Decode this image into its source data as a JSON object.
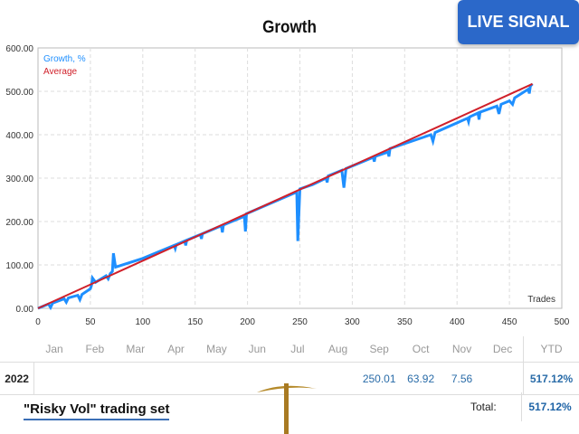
{
  "badge": "LIVE SIGNAL",
  "chart_data": {
    "type": "line",
    "title": "Growth",
    "xlabel": "Trades",
    "ylabel": "",
    "xlim": [
      0,
      500
    ],
    "ylim": [
      0,
      600
    ],
    "grid": true,
    "legend_placement": "top-left",
    "xticks": [
      "0",
      "50",
      "100",
      "150",
      "200",
      "250",
      "300",
      "350",
      "400",
      "450",
      "500"
    ],
    "yticks": [
      "0.00",
      "100.00",
      "200.00",
      "300.00",
      "400.00",
      "500.00",
      "600.00"
    ],
    "series": [
      {
        "name": "Growth, %",
        "color": "#1e8fff",
        "points": [
          [
            0,
            0
          ],
          [
            10,
            10
          ],
          [
            12,
            2
          ],
          [
            14,
            12
          ],
          [
            25,
            22
          ],
          [
            27,
            14
          ],
          [
            29,
            24
          ],
          [
            38,
            30
          ],
          [
            40,
            20
          ],
          [
            42,
            32
          ],
          [
            50,
            45
          ],
          [
            51,
            52
          ],
          [
            52,
            70
          ],
          [
            55,
            60
          ],
          [
            65,
            75
          ],
          [
            67,
            68
          ],
          [
            69,
            80
          ],
          [
            71,
            85
          ],
          [
            72,
            127
          ],
          [
            74,
            95
          ],
          [
            100,
            115
          ],
          [
            130,
            145
          ],
          [
            131,
            138
          ],
          [
            132,
            147
          ],
          [
            140,
            155
          ],
          [
            141,
            145
          ],
          [
            142,
            157
          ],
          [
            155,
            170
          ],
          [
            156,
            160
          ],
          [
            157,
            172
          ],
          [
            175,
            190
          ],
          [
            176,
            175
          ],
          [
            177,
            192
          ],
          [
            197,
            212
          ],
          [
            198,
            177
          ],
          [
            199,
            218
          ],
          [
            247,
            268
          ],
          [
            248,
            155
          ],
          [
            250,
            275
          ],
          [
            262,
            285
          ],
          [
            275,
            300
          ],
          [
            276,
            290
          ],
          [
            277,
            305
          ],
          [
            290,
            318
          ],
          [
            292,
            278
          ],
          [
            294,
            322
          ],
          [
            320,
            348
          ],
          [
            321,
            338
          ],
          [
            322,
            350
          ],
          [
            334,
            360
          ],
          [
            335,
            350
          ],
          [
            336,
            368
          ],
          [
            375,
            400
          ],
          [
            377,
            385
          ],
          [
            379,
            405
          ],
          [
            410,
            438
          ],
          [
            411,
            430
          ],
          [
            412,
            441
          ],
          [
            420,
            450
          ],
          [
            421,
            435
          ],
          [
            422,
            452
          ],
          [
            438,
            466
          ],
          [
            440,
            448
          ],
          [
            442,
            470
          ],
          [
            450,
            478
          ],
          [
            453,
            470
          ],
          [
            455,
            485
          ],
          [
            468,
            505
          ],
          [
            469,
            495
          ],
          [
            470,
            512
          ],
          [
            472,
            517
          ]
        ]
      },
      {
        "name": "Average",
        "color": "#d0202a",
        "points": [
          [
            0,
            0
          ],
          [
            472,
            517
          ]
        ]
      }
    ]
  },
  "table": {
    "months": [
      "Jan",
      "Feb",
      "Mar",
      "Apr",
      "May",
      "Jun",
      "Jul",
      "Aug",
      "Sep",
      "Oct",
      "Nov",
      "Dec"
    ],
    "ytd_label": "YTD",
    "year": "2022",
    "values": [
      "",
      "",
      "",
      "",
      "",
      "",
      "",
      "",
      "250.01",
      "63.92",
      "7.56",
      ""
    ],
    "ytd": "517.12%",
    "total_label": "Total:",
    "total": "517.12%"
  },
  "set_name": "\"Risky Vol\" trading set"
}
